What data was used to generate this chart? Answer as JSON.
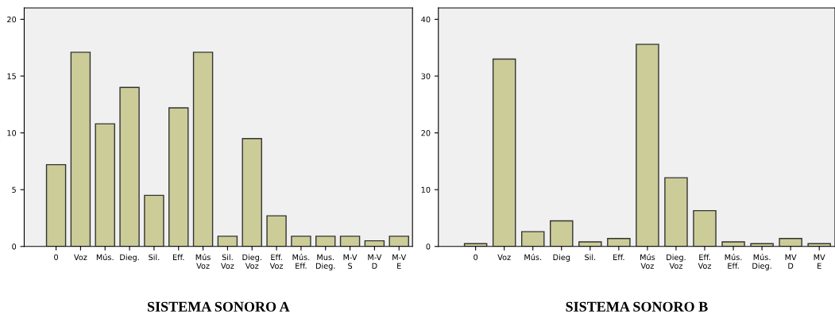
{
  "chart_data": [
    {
      "type": "bar",
      "title": "SISTEMA SONORO A",
      "categories": [
        "0",
        "Voz",
        "Mús.",
        "Dieg.",
        "Sil.",
        "Eff.",
        "Mús\nVoz",
        "Sil.\nVoz",
        "Dieg.\nVoz",
        "Eff.\nVoz",
        "Mús.\nEff.",
        "Mus.\nDieg.",
        "M-V\nS",
        "M-V\nD",
        "M-V\nE"
      ],
      "values": [
        7.2,
        17.1,
        10.8,
        14.0,
        4.5,
        12.2,
        17.1,
        0.9,
        9.5,
        2.7,
        0.9,
        0.9,
        0.9,
        0.5,
        0.9
      ],
      "color": "#cccc99",
      "ylim": [
        0,
        21
      ],
      "yticks": [
        0,
        5,
        10,
        15,
        20
      ],
      "grid": false,
      "legend": false
    },
    {
      "type": "bar",
      "title": "SISTEMA SONORO B",
      "categories": [
        "0",
        "Voz",
        "Mús.",
        "Dieg",
        "Sil.",
        "Eff.",
        "Mús\nVoz",
        "Dieg.\nVoz",
        "Eff.\nVoz",
        "Mús.\nEff.",
        "Mús.\nDieg.",
        "MV\nD",
        "MV\nE"
      ],
      "values": [
        0.5,
        33.0,
        2.6,
        4.5,
        0.8,
        1.4,
        35.6,
        12.1,
        6.3,
        0.8,
        0.5,
        1.4,
        0.5
      ],
      "color": "#cccc99",
      "ylim": [
        0,
        42
      ],
      "yticks": [
        0,
        10,
        20,
        30,
        40
      ],
      "grid": false,
      "legend": false
    }
  ]
}
